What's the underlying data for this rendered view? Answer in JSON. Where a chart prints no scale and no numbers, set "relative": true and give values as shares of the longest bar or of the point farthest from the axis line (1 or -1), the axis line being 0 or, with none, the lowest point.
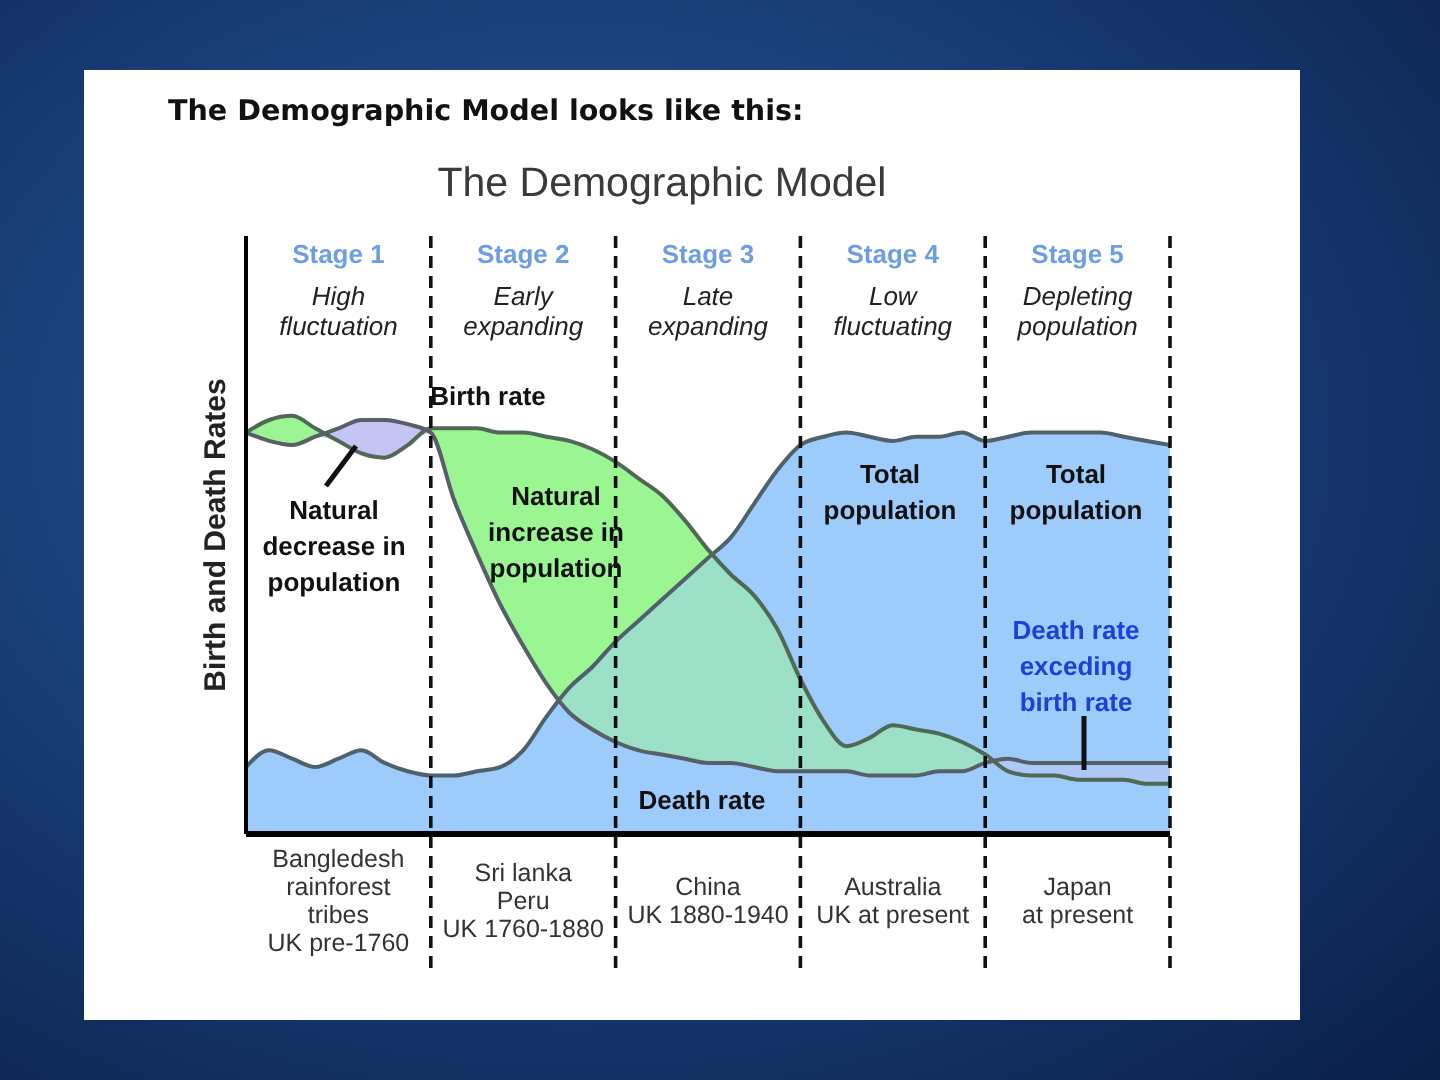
{
  "chart_data": {
    "type": "area",
    "title": "The Demographic Model looks like this:",
    "subtitle": "The Demographic Model",
    "ylabel": "Birth and Death Rates",
    "relative": true,
    "grid": "x",
    "categories": [
      null,
      null,
      null,
      null,
      "Bangledesh\nrainforest\ntribes\nUK pre-1760",
      null,
      null,
      null,
      null,
      null,
      null,
      null,
      "Sri lanka\nPeru\nUK 1760-1880",
      null,
      null,
      null,
      null,
      null,
      null,
      null,
      "China\nUK 1880-1940",
      null,
      null,
      null,
      null,
      null,
      null,
      null,
      "Australia\nUK at present",
      null,
      null,
      null,
      null,
      null,
      null,
      null,
      "Japan\nat present",
      null,
      null,
      null,
      null
    ],
    "series": [
      {
        "color": "#9ccbfc",
        "values": [
          0.16,
          0.2,
          0.18,
          0.16,
          0.18,
          0.2,
          0.17,
          0.15,
          0.14,
          0.14,
          0.15,
          0.16,
          0.2,
          0.28,
          0.35,
          0.4,
          0.46,
          0.51,
          0.56,
          0.61,
          0.66,
          0.71,
          0.79,
          0.87,
          0.93,
          0.95,
          0.96,
          0.95,
          0.94,
          0.95,
          0.95,
          0.96,
          0.94,
          0.95,
          0.96,
          0.96,
          0.96,
          0.96,
          0.95,
          0.94,
          0.93
        ]
      },
      {
        "color": "#9cf593",
        "values": [
          0.96,
          0.99,
          1.0,
          0.97,
          0.94,
          0.91,
          0.9,
          0.93,
          0.97,
          0.97,
          0.97,
          0.96,
          0.96,
          0.95,
          0.94,
          0.92,
          0.89,
          0.85,
          0.81,
          0.75,
          0.68,
          0.62,
          0.57,
          0.49,
          0.37,
          0.27,
          0.21,
          0.23,
          0.26,
          0.25,
          0.24,
          0.22,
          0.19,
          0.15,
          0.14,
          0.14,
          0.13,
          0.13,
          0.13,
          0.12,
          0.12
        ]
      },
      {
        "color": "#c4c4f5",
        "values": [
          0.96,
          0.94,
          0.93,
          0.95,
          0.97,
          0.99,
          0.99,
          0.98,
          0.96,
          0.8,
          0.67,
          0.55,
          0.45,
          0.36,
          0.29,
          0.25,
          0.22,
          0.2,
          0.19,
          0.18,
          0.17,
          0.17,
          0.16,
          0.15,
          0.15,
          0.15,
          0.15,
          0.14,
          0.14,
          0.14,
          0.15,
          0.15,
          0.17,
          0.18,
          0.17,
          0.17,
          0.17,
          0.17,
          0.17,
          0.17,
          0.17
        ]
      }
    ],
    "annotations": [
      "Stage 1\nHigh\nfluctuation",
      "Stage 2\nEarly\nexpanding",
      "Stage 3\nLate\nexpanding",
      "Stage 4\nLow\nfluctuating",
      "Stage 5\nDepleting\npopulation",
      "Birth rate",
      "Natural\nincrease in\npopulation",
      "Natural\ndecrease in\npopulation",
      "Death rate",
      "Total\npopulation",
      "Total\npopulation",
      "Death rate\nexceding\nbirth rate"
    ]
  }
}
